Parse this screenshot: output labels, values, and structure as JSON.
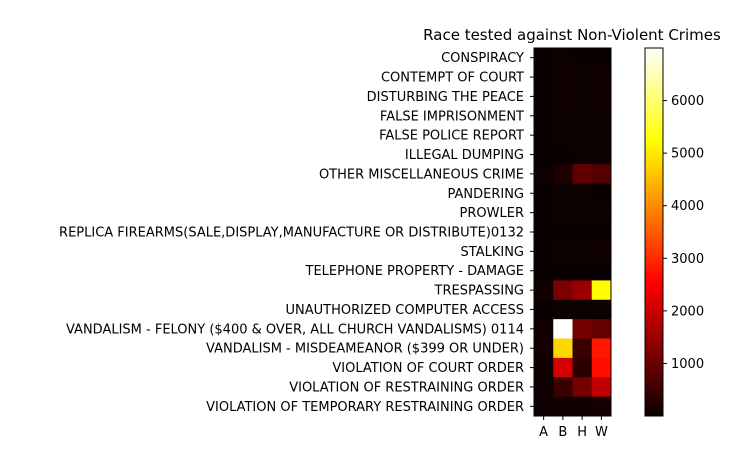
{
  "chart_data": {
    "type": "heatmap",
    "title": "Race tested against Non-Violent Crimes",
    "xlabel": "",
    "ylabel": "",
    "colormap": "hot",
    "x_categories": [
      "A",
      "B",
      "H",
      "W"
    ],
    "y_categories": [
      "CONSPIRACY",
      "CONTEMPT OF COURT",
      "DISTURBING THE PEACE",
      "FALSE IMPRISONMENT",
      "FALSE POLICE REPORT",
      "ILLEGAL DUMPING",
      "OTHER MISCELLANEOUS CRIME",
      "PANDERING",
      "PROWLER",
      "REPLICA FIREARMS(SALE,DISPLAY,MANUFACTURE OR DISTRIBUTE)0132",
      "STALKING",
      "TELEPHONE PROPERTY - DAMAGE",
      "TRESPASSING",
      "UNAUTHORIZED COMPUTER ACCESS",
      "VANDALISM - FELONY ($400 & OVER, ALL CHURCH VANDALISMS) 0114",
      "VANDALISM - MISDEAMEANOR ($399 OR UNDER)",
      "VIOLATION OF COURT ORDER",
      "VIOLATION OF RESTRAINING ORDER",
      "VIOLATION OF TEMPORARY RESTRAINING ORDER"
    ],
    "values": [
      [
        2,
        10,
        8,
        6
      ],
      [
        5,
        60,
        30,
        40
      ],
      [
        3,
        40,
        30,
        50
      ],
      [
        1,
        10,
        10,
        10
      ],
      [
        2,
        20,
        20,
        20
      ],
      [
        1,
        5,
        10,
        10
      ],
      [
        20,
        200,
        900,
        750
      ],
      [
        1,
        20,
        10,
        5
      ],
      [
        1,
        10,
        10,
        10
      ],
      [
        1,
        5,
        5,
        5
      ],
      [
        5,
        30,
        30,
        60
      ],
      [
        1,
        5,
        5,
        5
      ],
      [
        60,
        1200,
        1500,
        5200
      ],
      [
        2,
        10,
        10,
        20
      ],
      [
        80,
        7000,
        1100,
        950
      ],
      [
        100,
        4800,
        500,
        2800
      ],
      [
        60,
        2100,
        350,
        2700
      ],
      [
        40,
        500,
        1100,
        1900
      ],
      [
        10,
        80,
        40,
        100
      ]
    ],
    "colorbar": {
      "min": 0,
      "max": 7000,
      "ticks": [
        1000,
        2000,
        3000,
        4000,
        5000,
        6000
      ]
    }
  }
}
